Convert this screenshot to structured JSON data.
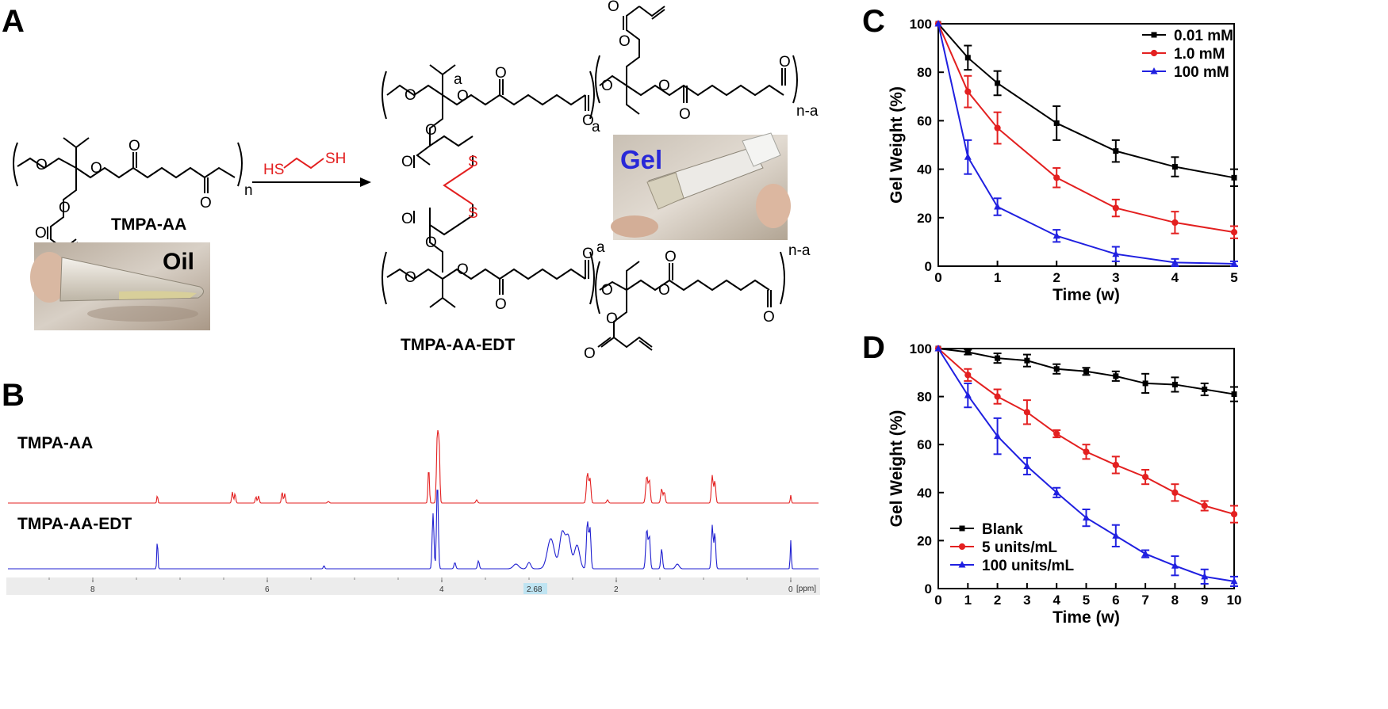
{
  "panels": {
    "A": "A",
    "B": "B",
    "C": "C",
    "D": "D"
  },
  "panelA": {
    "monomer_name": "TMPA-AA",
    "product_name": "TMPA-AA-EDT",
    "reagent_left": "HS",
    "reagent_right": "SH",
    "photo_oil_label": "Oil",
    "photo_gel_label": "Gel",
    "atom_O": "O",
    "atom_S": "S",
    "sub_n": "n",
    "sub_a": "a",
    "sub_na": "n-a"
  },
  "panelB": {
    "trace1_label": "TMPA-AA",
    "trace2_label": "TMPA-AA-EDT",
    "trace1_color": "#e32020",
    "trace2_color": "#2020d0",
    "axis_ticks": [
      "8",
      "6",
      "4",
      "2",
      "0"
    ],
    "axis_unit": "[ppm]",
    "marker_label": "2.68"
  },
  "chart_data": [
    {
      "type": "line",
      "panel": "C",
      "xlabel": "Time (w)",
      "ylabel": "Gel Weight (%)",
      "xlim": [
        0,
        5
      ],
      "ylim": [
        0,
        100
      ],
      "xticks": [
        0,
        1,
        2,
        3,
        4,
        5
      ],
      "yticks": [
        0,
        20,
        40,
        60,
        80,
        100
      ],
      "legend_position": "top-right",
      "series": [
        {
          "name": "0.01 mM",
          "color": "#000000",
          "marker": "square",
          "x": [
            0,
            0.5,
            1,
            2,
            3,
            4,
            5
          ],
          "y": [
            100,
            86,
            75.5,
            59,
            47.5,
            41,
            36.5
          ],
          "err": [
            0,
            5,
            5,
            7,
            4.5,
            4,
            3.5
          ]
        },
        {
          "name": "1.0 mM",
          "color": "#e32020",
          "marker": "circle",
          "x": [
            0,
            0.5,
            1,
            2,
            3,
            4,
            5
          ],
          "y": [
            100,
            72,
            57,
            36.5,
            24,
            18,
            14
          ],
          "err": [
            0,
            6.5,
            6.5,
            4,
            3.5,
            4.5,
            2.5
          ]
        },
        {
          "name": "100 mM",
          "color": "#2020e0",
          "marker": "triangle",
          "x": [
            0,
            0.5,
            1,
            2,
            3,
            4,
            5
          ],
          "y": [
            100,
            45,
            24.5,
            12.5,
            5,
            1.5,
            1
          ],
          "err": [
            0,
            7,
            3.5,
            2.5,
            3,
            1.5,
            1
          ]
        }
      ]
    },
    {
      "type": "line",
      "panel": "D",
      "xlabel": "Time (w)",
      "ylabel": "Gel Weight (%)",
      "xlim": [
        0,
        10
      ],
      "ylim": [
        0,
        100
      ],
      "xticks": [
        0,
        1,
        2,
        3,
        4,
        5,
        6,
        7,
        8,
        9,
        10
      ],
      "yticks": [
        0,
        20,
        40,
        60,
        80,
        100
      ],
      "legend_position": "bottom-left",
      "series": [
        {
          "name": "Blank",
          "color": "#000000",
          "marker": "square",
          "x": [
            0,
            1,
            2,
            3,
            4,
            5,
            6,
            7,
            8,
            9,
            10
          ],
          "y": [
            100,
            98.5,
            96,
            95,
            91.5,
            90.5,
            88.5,
            85.5,
            85,
            83,
            81
          ],
          "err": [
            0,
            1,
            2,
            2.5,
            2,
            1.5,
            2,
            4,
            3,
            2.5,
            3
          ]
        },
        {
          "name": "5 units/mL",
          "color": "#e32020",
          "marker": "circle",
          "x": [
            0,
            1,
            2,
            3,
            4,
            5,
            6,
            7,
            8,
            9,
            10
          ],
          "y": [
            100,
            89,
            80,
            73.5,
            64.5,
            57,
            51.5,
            46.5,
            40,
            34.5,
            31
          ],
          "err": [
            0,
            2.5,
            3,
            5,
            1.5,
            3,
            3.5,
            3,
            3.5,
            2,
            3.5
          ]
        },
        {
          "name": "100 units/mL",
          "color": "#2020e0",
          "marker": "triangle",
          "x": [
            0,
            1,
            2,
            3,
            4,
            5,
            6,
            7,
            8,
            9,
            10
          ],
          "y": [
            100,
            80.5,
            63.5,
            51,
            40,
            29.5,
            22,
            14.5,
            9.5,
            5,
            3
          ],
          "err": [
            0,
            5,
            7.5,
            3.5,
            2,
            3.5,
            4.5,
            1.5,
            4,
            3,
            2
          ]
        }
      ]
    }
  ]
}
